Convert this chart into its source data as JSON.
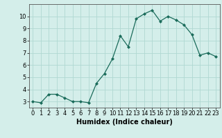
{
  "x": [
    0,
    1,
    2,
    3,
    4,
    5,
    6,
    7,
    8,
    9,
    10,
    11,
    12,
    13,
    14,
    15,
    16,
    17,
    18,
    19,
    20,
    21,
    22,
    23
  ],
  "y": [
    3.0,
    2.9,
    3.6,
    3.6,
    3.3,
    3.0,
    3.0,
    2.9,
    4.5,
    5.3,
    6.5,
    8.4,
    7.5,
    9.8,
    10.2,
    10.5,
    9.6,
    10.0,
    9.7,
    9.3,
    8.5,
    6.8,
    7.0,
    6.7
  ],
  "line_color": "#1a6b5a",
  "marker_color": "#1a6b5a",
  "bg_color": "#d4eeea",
  "grid_color": "#b0d8d2",
  "xlabel": "Humidex (Indice chaleur)",
  "xlabel_fontsize": 7,
  "ylim": [
    2.5,
    11.0
  ],
  "xlim": [
    -0.5,
    23.5
  ],
  "yticks": [
    3,
    4,
    5,
    6,
    7,
    8,
    9,
    10
  ],
  "xticks": [
    0,
    1,
    2,
    3,
    4,
    5,
    6,
    7,
    8,
    9,
    10,
    11,
    12,
    13,
    14,
    15,
    16,
    17,
    18,
    19,
    20,
    21,
    22,
    23
  ],
  "tick_fontsize": 6,
  "spine_color": "#555555"
}
